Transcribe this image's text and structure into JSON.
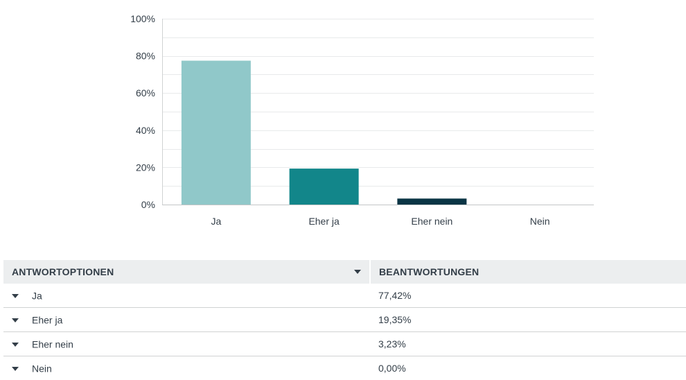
{
  "chart_data": {
    "type": "bar",
    "categories": [
      "Ja",
      "Eher ja",
      "Eher nein",
      "Nein"
    ],
    "values": [
      77.42,
      19.35,
      3.23,
      0.0
    ],
    "ylim": [
      0,
      100
    ],
    "yticks": [
      "0%",
      "20%",
      "40%",
      "60%",
      "80%",
      "100%"
    ],
    "colors": [
      "#90c8c9",
      "#12868a",
      "#0a3545",
      "#0a3545"
    ],
    "grid": true,
    "legend": "none"
  },
  "table": {
    "headers": {
      "option": "ANTWORTOPTIONEN",
      "responses": "BEANTWORTUNGEN"
    },
    "rows": [
      {
        "option": "Ja",
        "value": "77,42%"
      },
      {
        "option": "Eher ja",
        "value": "19,35%"
      },
      {
        "option": "Eher nein",
        "value": "3,23%"
      },
      {
        "option": "Nein",
        "value": "0,00%"
      }
    ]
  }
}
